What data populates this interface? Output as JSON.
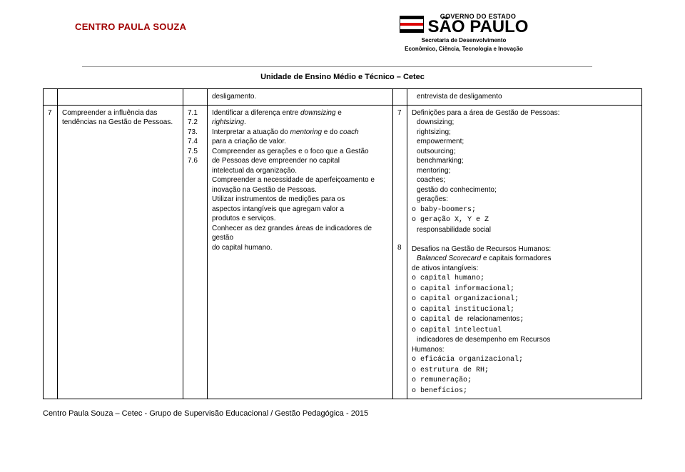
{
  "header": {
    "cps_name": "CENTRO PAULA SOUZA",
    "gov_label": "GOVERNO DO ESTADO",
    "sp_word": "SÃO PAULO",
    "secretaria_l1": "Secretaria de Desenvolvimento",
    "secretaria_l2": "Econômico, Ciência, Tecnologia e Inovação",
    "unit_line": "Unidade de Ensino Médio e Técnico – Cetec"
  },
  "row_top": {
    "c3_text": "desligamento.",
    "c5_text": "entrevista de desligamento"
  },
  "row_main": {
    "c0_num": "7",
    "c1_text": "Compreender a influência das tendências na Gestão de Pessoas.",
    "c2_items": [
      "7.1",
      "7.2",
      "",
      "73.",
      "",
      "7.4",
      "",
      "7.5",
      "",
      "7.6"
    ],
    "c3_items": [
      {
        "t": "Identificar a diferença entre ",
        "i": "downsizing",
        "t2": " e "
      },
      {
        "i": "rightsizing",
        "t2": "."
      },
      {
        "t": "Interpretar a atuação do ",
        "i": "mentoring",
        "t2": " e do ",
        "i2": "coach"
      },
      {
        "t": "para a criação de valor."
      },
      {
        "t": "Compreender as gerações e o foco que a Gestão"
      },
      {
        "t": "de Pessoas deve empreender no capital"
      },
      {
        "t": "intelectual da organização."
      },
      {
        "t": "Compreender a necessidade de aperfeiçoamento e"
      },
      {
        "t": "inovação na Gestão de Pessoas."
      },
      {
        "t": "Utilizar instrumentos de medições para os"
      },
      {
        "t": "aspectos intangíveis que agregam valor a"
      },
      {
        "t": "produtos e serviços."
      },
      {
        "t": "Conhecer as dez grandes áreas de indicadores de gestão"
      },
      {
        "t": "do capital humano."
      }
    ],
    "c4_nums": [
      "7",
      "",
      "",
      "",
      "",
      "",
      "",
      "",
      "",
      "",
      "",
      "",
      "",
      "",
      "8"
    ],
    "c5_block1_title": "Definições para a área de Gestão de Pessoas:",
    "c5_block1_items": [
      "downsizing;",
      "rightsizing;",
      "empowerment;",
      "outsourcing;",
      "benchmarking;",
      "mentoring;",
      "coaches;",
      "gestão do conhecimento;",
      "gerações:"
    ],
    "c5_block1_sub": [
      "baby-boomers;",
      "geração X, Y e Z"
    ],
    "c5_block1_last": "responsabilidade social",
    "c5_block2_title": "Desafios na Gestão de Recursos Humanos:",
    "c5_block2_line1a": "Balanced Scorecard",
    "c5_block2_line1b": " e capitais formadores",
    "c5_block2_line2": "de ativos intangíveis:",
    "c5_block2_sub": [
      "capital humano;",
      "capital informacional;",
      "capital organizacional;",
      "capital institucional;"
    ],
    "c5_block2_rel_pre": "capital de ",
    "c5_block2_rel_mid": "relacionamentos",
    "c5_block2_rel_post": ";",
    "c5_block2_intel": "capital intelectual",
    "c5_block2_ind_line1": "indicadores de desempenho em Recursos",
    "c5_block2_ind_line2": "Humanos:",
    "c5_block2_sub2": [
      "eficácia organizacional;",
      "estrutura de RH;",
      "remuneração;",
      "benefícios;"
    ]
  },
  "footer": "Centro Paula Souza – Cetec - Grupo de Supervisão Educacional / Gestão Pedagógica - 2015",
  "style": {
    "page_bg": "#ffffff",
    "border_color": "#000000",
    "cps_color": "#a00000",
    "font_size_body": 10,
    "font_size_header_unit": 11,
    "font_size_footer": 11,
    "table_border_width": 1.5
  }
}
